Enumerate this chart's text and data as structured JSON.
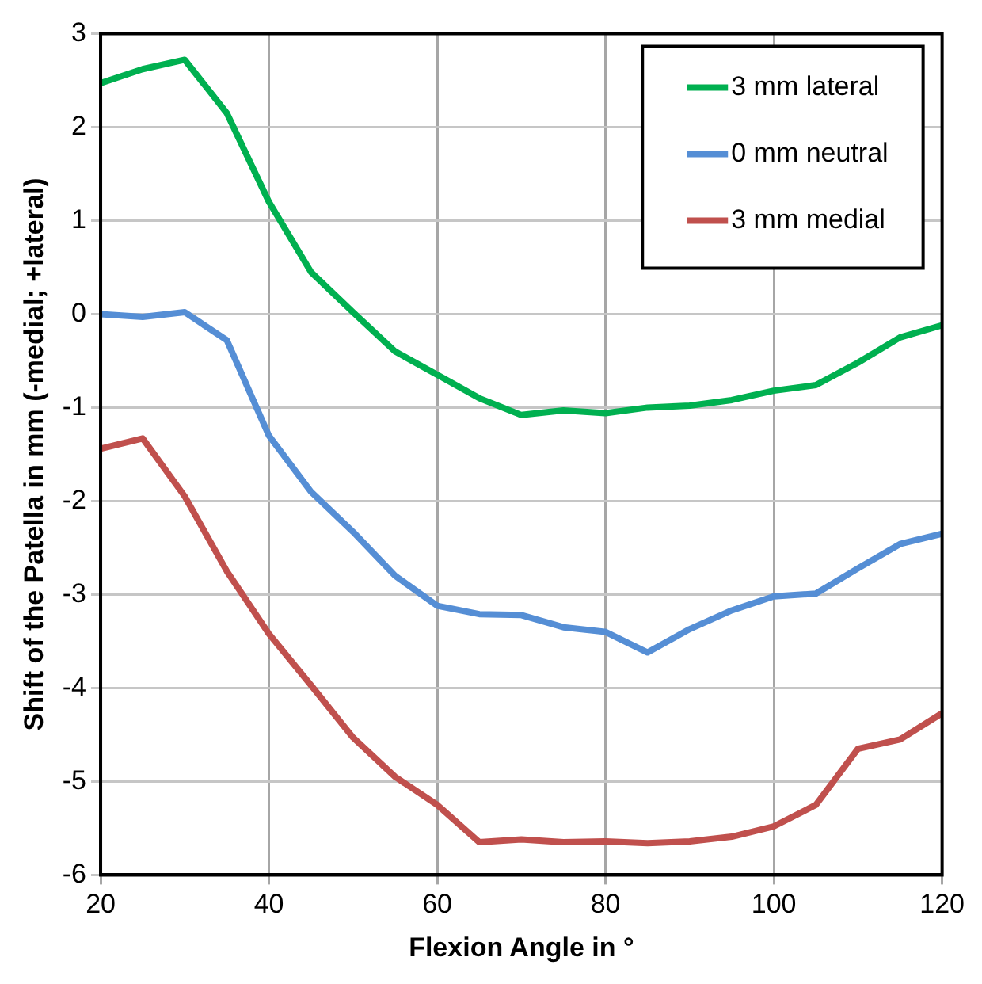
{
  "chart_data": {
    "type": "line",
    "xlabel": "Flexion Angle in °",
    "ylabel": "Shift of the Patella in mm (-medial; +lateral)",
    "x": [
      20,
      25,
      30,
      35,
      40,
      45,
      50,
      55,
      60,
      65,
      70,
      75,
      80,
      85,
      90,
      95,
      100,
      105,
      110,
      115,
      120
    ],
    "series": [
      {
        "name": "3 mm lateral",
        "color": "#00b050",
        "values": [
          2.47,
          2.62,
          2.72,
          2.15,
          1.2,
          0.45,
          0.02,
          -0.4,
          -0.65,
          -0.9,
          -1.08,
          -1.03,
          -1.06,
          -1.0,
          -0.98,
          -0.92,
          -0.82,
          -0.76,
          -0.52,
          -0.25,
          -0.12
        ]
      },
      {
        "name": "0 mm neutral",
        "color": "#558ed5",
        "values": [
          0,
          -0.03,
          0.02,
          -0.28,
          -1.3,
          -1.9,
          -2.33,
          -2.8,
          -3.12,
          -3.21,
          -3.22,
          -3.35,
          -3.4,
          -3.62,
          -3.37,
          -3.17,
          -3.02,
          -2.99,
          -2.72,
          -2.46,
          -2.35
        ]
      },
      {
        "name": "3 mm medial",
        "color": "#c0504d",
        "values": [
          -1.44,
          -1.33,
          -1.95,
          -2.75,
          -3.42,
          -3.97,
          -4.53,
          -4.95,
          -5.25,
          -5.65,
          -5.62,
          -5.65,
          -5.64,
          -5.66,
          -5.64,
          -5.59,
          -5.48,
          -5.25,
          -4.65,
          -4.55,
          -4.27
        ]
      }
    ],
    "xlim": [
      20,
      120
    ],
    "xticks": [
      20,
      40,
      60,
      80,
      100,
      120
    ],
    "ylim": [
      -6,
      3
    ],
    "yticks": [
      -6,
      -5,
      -4,
      -3,
      -2,
      -1,
      0,
      1,
      2,
      3
    ],
    "grid": true,
    "legend": "top right",
    "marker": "none",
    "line_style": "solid"
  }
}
